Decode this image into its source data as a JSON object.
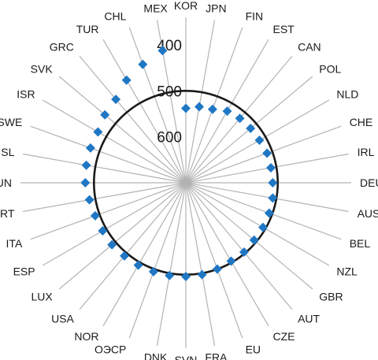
{
  "chart_data": {
    "type": "radar",
    "title": "",
    "axis": {
      "min": 340,
      "max": 700,
      "reversed": true,
      "ticks": [
        400,
        500,
        600
      ]
    },
    "reference_ring": {
      "value": 500
    },
    "categories": [
      "KOR",
      "JPN",
      "FIN",
      "EST",
      "CAN",
      "POL",
      "NLD",
      "CHE",
      "IRL",
      "DEU",
      "AUS",
      "BEL",
      "NZL",
      "GBR",
      "AUT",
      "CZE",
      "EU",
      "FRA",
      "SVN",
      "DNK",
      "ОЭСР",
      "NOR",
      "USA",
      "LUX",
      "ESP",
      "ITA",
      "PRT",
      "HUN",
      "ISL",
      "SWE",
      "ISR",
      "SVK",
      "GRC",
      "TUR",
      "CHL",
      "MEX"
    ],
    "series": [
      {
        "color": "#1f77c4",
        "marker": "diamond",
        "values": [
          538,
          532,
          530,
          520,
          517,
          516,
          515,
          512,
          512,
          511,
          508,
          507,
          506,
          506,
          503,
          503,
          500,
          497,
          496,
          495,
          494,
          493,
          492,
          490,
          491,
          490,
          487,
          481,
          480,
          479,
          479,
          470,
          463,
          442,
          426,
          408
        ]
      }
    ]
  }
}
